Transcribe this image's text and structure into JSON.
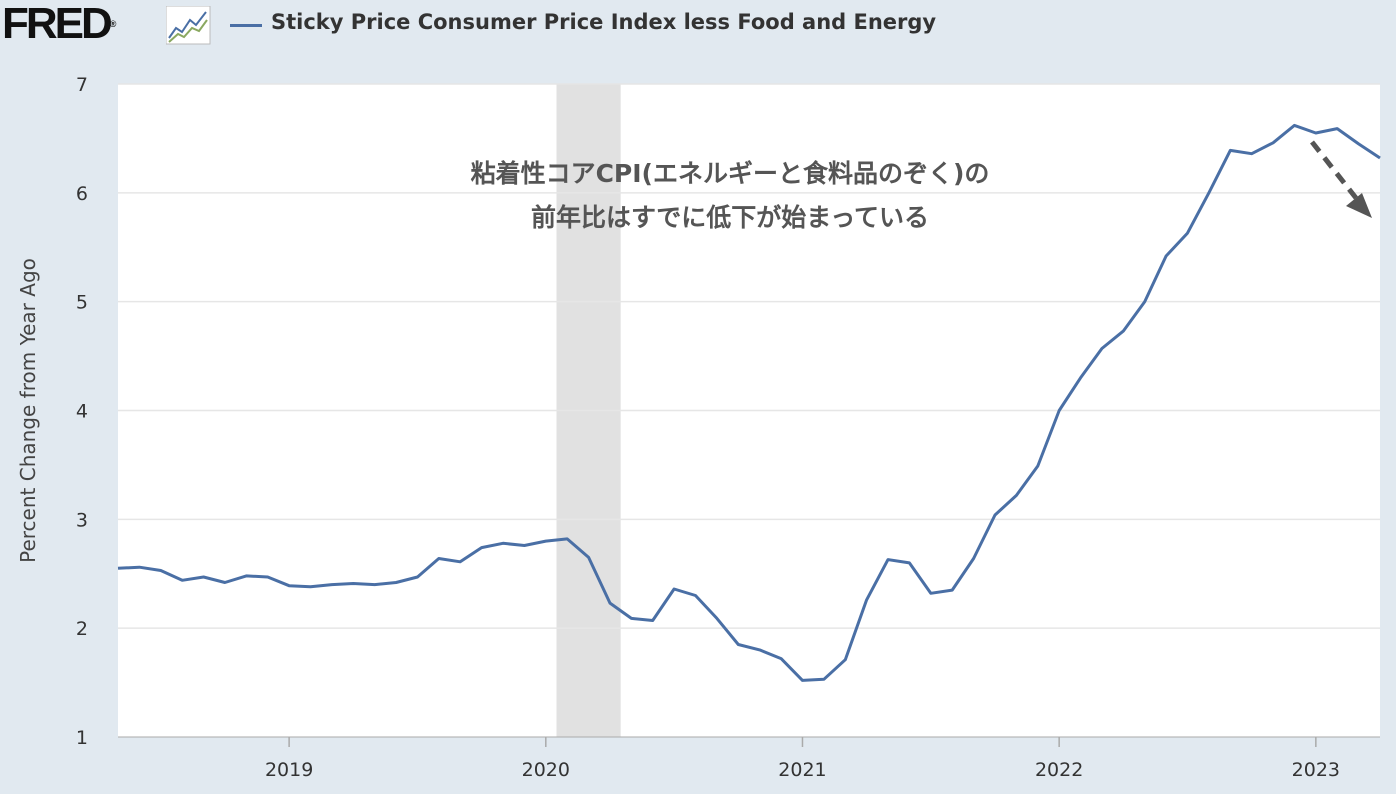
{
  "header": {
    "logo_text": "FRED",
    "logo_mark": "®",
    "logo_icon": "line-graph-icon",
    "series_title": "Sticky Price Consumer Price Index less Food and Energy"
  },
  "colors": {
    "background": "#e1e9f0",
    "plot_bg": "#ffffff",
    "series": "#4a6fa5",
    "recession": "#e1e1e1",
    "gridline": "#e6e6e6",
    "annotation": "#555555",
    "arrow": "#555555"
  },
  "chart_data": {
    "type": "line",
    "title": "Sticky Price Consumer Price Index less Food and Energy",
    "ylabel": "Percent Change from Year Ago",
    "xlabel": "",
    "ylim": [
      1,
      7
    ],
    "xlim": [
      "2018-05",
      "2023-04"
    ],
    "grid": true,
    "legend": "top-left",
    "yticks": [
      1,
      2,
      3,
      4,
      5,
      6,
      7
    ],
    "xticks": [
      {
        "label": "2019",
        "date": "2019-01"
      },
      {
        "label": "2020",
        "date": "2020-01"
      },
      {
        "label": "2021",
        "date": "2021-01"
      },
      {
        "label": "2022",
        "date": "2022-01"
      },
      {
        "label": "2023",
        "date": "2023-01"
      }
    ],
    "recession": {
      "start": "2020-02",
      "end": "2020-04"
    },
    "series": [
      {
        "name": "Sticky Price Consumer Price Index less Food and Energy",
        "x": [
          "2018-05",
          "2018-06",
          "2018-07",
          "2018-08",
          "2018-09",
          "2018-10",
          "2018-11",
          "2018-12",
          "2019-01",
          "2019-02",
          "2019-03",
          "2019-04",
          "2019-05",
          "2019-06",
          "2019-07",
          "2019-08",
          "2019-09",
          "2019-10",
          "2019-11",
          "2019-12",
          "2020-01",
          "2020-02",
          "2020-03",
          "2020-04",
          "2020-05",
          "2020-06",
          "2020-07",
          "2020-08",
          "2020-09",
          "2020-10",
          "2020-11",
          "2020-12",
          "2021-01",
          "2021-02",
          "2021-03",
          "2021-04",
          "2021-05",
          "2021-06",
          "2021-07",
          "2021-08",
          "2021-09",
          "2021-10",
          "2021-11",
          "2021-12",
          "2022-01",
          "2022-02",
          "2022-03",
          "2022-04",
          "2022-05",
          "2022-06",
          "2022-07",
          "2022-08",
          "2022-09",
          "2022-10",
          "2022-11",
          "2022-12",
          "2023-01",
          "2023-02",
          "2023-03",
          "2023-04"
        ],
        "values": [
          2.55,
          2.56,
          2.53,
          2.44,
          2.47,
          2.42,
          2.48,
          2.47,
          2.39,
          2.38,
          2.4,
          2.41,
          2.4,
          2.42,
          2.47,
          2.64,
          2.61,
          2.74,
          2.78,
          2.76,
          2.8,
          2.82,
          2.65,
          2.23,
          2.09,
          2.07,
          2.36,
          2.3,
          2.09,
          1.85,
          1.8,
          1.72,
          1.52,
          1.53,
          1.71,
          2.26,
          2.63,
          2.6,
          2.32,
          2.35,
          2.64,
          3.04,
          3.22,
          3.49,
          4.0,
          4.3,
          4.57,
          4.73,
          5.0,
          5.42,
          5.63,
          6.0,
          6.39,
          6.36,
          6.46,
          6.62,
          6.55,
          6.59,
          6.45,
          6.32
        ]
      }
    ],
    "annotations": [
      {
        "text": "粘着性コアCPI(エネルギーと食料品のぞく)の"
      },
      {
        "text": "前年比はすでに低下が始まっている"
      }
    ]
  }
}
